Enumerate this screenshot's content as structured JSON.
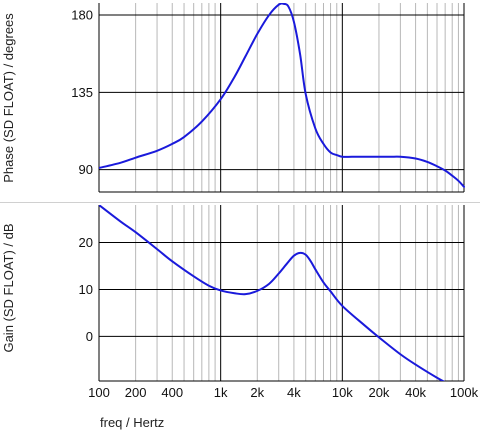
{
  "chart_data": [
    {
      "type": "line",
      "panel": "phase",
      "ylabel": "Phase (SD FLOAT) / degrees",
      "xscale": "log",
      "xlim": [
        100,
        100000
      ],
      "ylim": [
        77,
        187
      ],
      "ytick_values": [
        90,
        135,
        180
      ],
      "ytick_labels": [
        "90",
        "135",
        "180"
      ],
      "color": "#1a1adb",
      "grid": true,
      "series": [
        {
          "x": [
            100,
            150,
            200,
            300,
            400,
            500,
            700,
            1000,
            1300,
            1600,
            2000,
            2500,
            3000,
            3300,
            3600,
            4000,
            4500,
            5000,
            6000,
            7000,
            8000,
            9000,
            10000,
            12000,
            15000,
            20000,
            25000,
            30000,
            40000,
            50000,
            60000,
            70000,
            80000,
            90000,
            100000
          ],
          "values": [
            91,
            94,
            97,
            101,
            105,
            109,
            118,
            131,
            144,
            156,
            169,
            180,
            186,
            186.5,
            185,
            176,
            157,
            134,
            114,
            105,
            100,
            98.5,
            97.5,
            97.5,
            97.5,
            97.5,
            97.5,
            97.5,
            96.5,
            94.5,
            92,
            89.5,
            86.5,
            83.5,
            80
          ]
        }
      ]
    },
    {
      "type": "line",
      "panel": "gain",
      "ylabel": "Gain (SD FLOAT) / dB",
      "xlabel": "freq / Hertz",
      "xscale": "log",
      "xlim": [
        100,
        100000
      ],
      "ylim": [
        -9.5,
        28
      ],
      "ytick_values": [
        0,
        10,
        20
      ],
      "ytick_labels": [
        "0",
        "10",
        "20"
      ],
      "xtick_values": [
        100,
        200,
        400,
        1000,
        2000,
        4000,
        10000,
        20000,
        40000,
        100000
      ],
      "xtick_labels": [
        "100",
        "200",
        "400",
        "1k",
        "2k",
        "4k",
        "10k",
        "20k",
        "40k",
        "100k"
      ],
      "color": "#1a1adb",
      "grid": true,
      "series": [
        {
          "x": [
            100,
            150,
            200,
            300,
            400,
            600,
            800,
            1000,
            1300,
            1600,
            2000,
            2500,
            3000,
            3500,
            4000,
            4500,
            5000,
            5500,
            6000,
            7000,
            8000,
            10000,
            15000,
            20000,
            30000,
            40000,
            60000,
            80000,
            100000
          ],
          "values": [
            28,
            24.5,
            22.2,
            18.6,
            16,
            12.8,
            10.8,
            9.8,
            9.2,
            9,
            9.7,
            11.2,
            13.4,
            15.5,
            17.2,
            17.8,
            17.4,
            16,
            14.3,
            11.5,
            9.6,
            6.5,
            2.5,
            -0.2,
            -3.8,
            -6,
            -8.8,
            -10.5,
            -11.5
          ]
        }
      ]
    }
  ]
}
